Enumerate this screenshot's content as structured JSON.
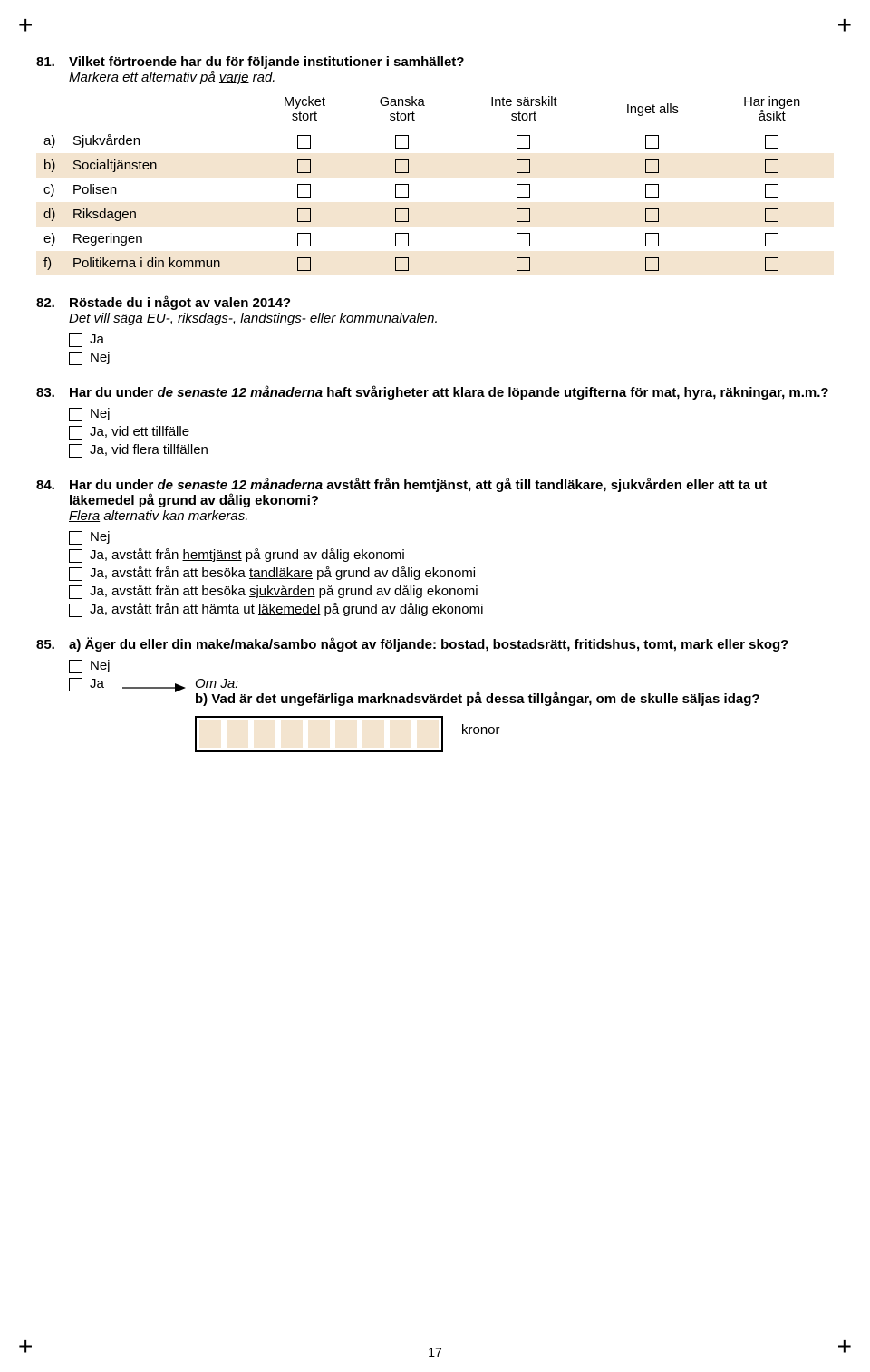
{
  "colors": {
    "row_highlight": "#f3e4cf",
    "page_bg": "#ffffff",
    "text": "#000000",
    "checkbox_border": "#000000"
  },
  "q81": {
    "number": "81.",
    "text": "Vilket förtroende har du för följande institutioner i samhället?",
    "instruction_prefix": "Markera ett alternativ på ",
    "instruction_underlined": "varje",
    "instruction_suffix": " rad.",
    "headers": {
      "c1_l1": "Mycket",
      "c1_l2": "stort",
      "c2_l1": "Ganska",
      "c2_l2": "stort",
      "c3_l1": "Inte särskilt",
      "c3_l2": "stort",
      "c4_l1": "Inget alls",
      "c4_l2": "",
      "c5_l1": "Har ingen",
      "c5_l2": "åsikt"
    },
    "rows": [
      {
        "letter": "a)",
        "label": "Sjukvården"
      },
      {
        "letter": "b)",
        "label": "Socialtjänsten"
      },
      {
        "letter": "c)",
        "label": "Polisen"
      },
      {
        "letter": "d)",
        "label": "Riksdagen"
      },
      {
        "letter": "e)",
        "label": "Regeringen"
      },
      {
        "letter": "f)",
        "label": "Politikerna i din kommun"
      }
    ]
  },
  "q82": {
    "number": "82.",
    "text": "Röstade du i något av valen 2014?",
    "instruction": "Det vill säga EU-, riksdags-, landstings- eller kommunalvalen.",
    "options": [
      "Ja",
      "Nej"
    ]
  },
  "q83": {
    "number": "83.",
    "text_before_italic": "Har du under ",
    "text_italic": "de senaste 12 månaderna",
    "text_after_italic": " haft svårigheter att klara de löpande utgifterna för mat, hyra, räkningar, m.m.?",
    "options": [
      "Nej",
      "Ja, vid ett tillfälle",
      "Ja, vid flera tillfällen"
    ]
  },
  "q84": {
    "number": "84.",
    "text_before_italic": "Har du under ",
    "text_italic": "de senaste 12 månaderna",
    "text_after_italic": " avstått från hemtjänst, att gå till tandläkare, sjukvården eller att ta ut läkemedel på grund av dålig ekonomi?",
    "instruction_underlined": "Flera",
    "instruction_suffix": " alternativ kan markeras.",
    "options": [
      {
        "pre": "Nej",
        "und": "",
        "post": ""
      },
      {
        "pre": "Ja, avstått från ",
        "und": "hemtjänst",
        "post": " på grund av dålig ekonomi"
      },
      {
        "pre": "Ja, avstått från att besöka ",
        "und": "tandläkare",
        "post": " på grund av dålig ekonomi"
      },
      {
        "pre": "Ja, avstått från att besöka ",
        "und": "sjukvården",
        "post": " på grund av dålig ekonomi"
      },
      {
        "pre": "Ja, avstått från att hämta ut ",
        "und": "läkemedel",
        "post": " på grund av dålig ekonomi"
      }
    ]
  },
  "q85": {
    "number": "85.",
    "text": "a) Äger du eller din make/maka/sambo något av följande: bostad, bostadsrätt, fritidshus, tomt, mark eller skog?",
    "opt_nej": "Nej",
    "opt_ja": "Ja",
    "omja": "Om Ja:",
    "b_text": "b) Vad är det ungefärliga marknadsvärdet på dessa tillgångar, om de skulle säljas idag?",
    "digit_count": 9,
    "unit": "kronor"
  },
  "page_number": "17"
}
